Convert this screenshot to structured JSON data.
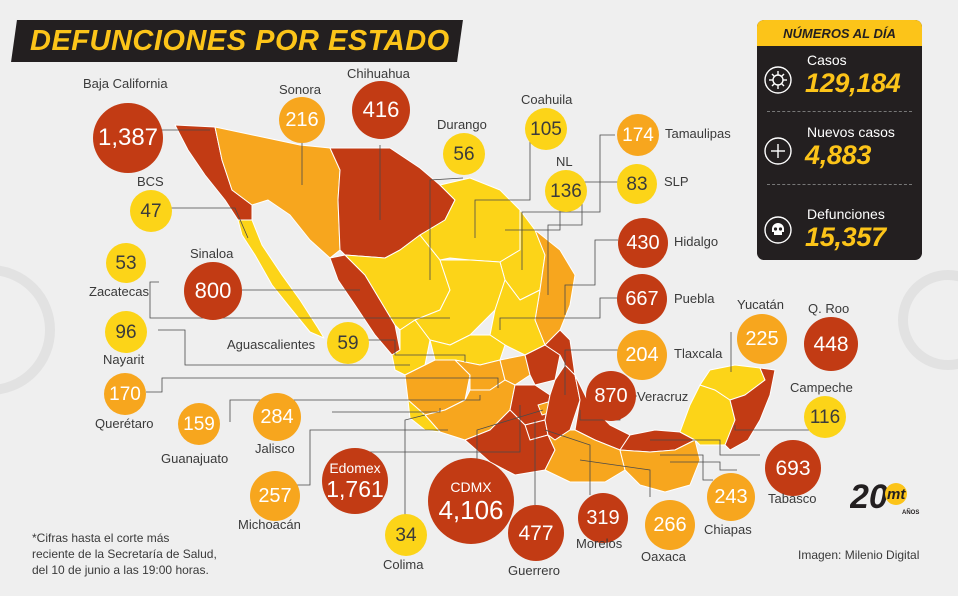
{
  "title": "DEFUNCIONES POR ESTADO",
  "colors": {
    "low": "#fcd418",
    "mid": "#f7a61e",
    "high": "#c23b14",
    "dark": "#231f20"
  },
  "summary": {
    "heading": "NÚMEROS AL DÍA",
    "items": [
      {
        "label": "Casos",
        "value": "129,184",
        "icon": "virus-icon"
      },
      {
        "label": "Nuevos casos",
        "value": "4,883",
        "icon": "plus-icon"
      },
      {
        "label": "Defunciones",
        "value": "15,357",
        "icon": "skull-icon"
      }
    ]
  },
  "states": {
    "baja_california": {
      "name": "Baja California",
      "value": "1,387",
      "level": "high"
    },
    "sonora": {
      "name": "Sonora",
      "value": "216",
      "level": "mid"
    },
    "chihuahua": {
      "name": "Chihuahua",
      "value": "416",
      "level": "high"
    },
    "durango": {
      "name": "Durango",
      "value": "56",
      "level": "low"
    },
    "coahuila": {
      "name": "Coahuila",
      "value": "105",
      "level": "low"
    },
    "tamaulipas": {
      "name": "Tamaulipas",
      "value": "174",
      "level": "mid"
    },
    "nl": {
      "name": "NL",
      "value": "136",
      "level": "low"
    },
    "slp": {
      "name": "SLP",
      "value": "83",
      "level": "low"
    },
    "bcs": {
      "name": "BCS",
      "value": "47",
      "level": "low"
    },
    "hidalgo": {
      "name": "Hidalgo",
      "value": "430",
      "level": "high"
    },
    "zacatecas": {
      "name": "Zacatecas",
      "value": "53",
      "level": "low"
    },
    "sinaloa": {
      "name": "Sinaloa",
      "value": "800",
      "level": "high"
    },
    "puebla": {
      "name": "Puebla",
      "value": "667",
      "level": "high"
    },
    "nayarit": {
      "name": "Nayarit",
      "value": "96",
      "level": "low"
    },
    "aguascalientes": {
      "name": "Aguascalientes",
      "value": "59",
      "level": "low"
    },
    "yucatan": {
      "name": "Yucatán",
      "value": "225",
      "level": "mid"
    },
    "qroo": {
      "name": "Q. Roo",
      "value": "448",
      "level": "high"
    },
    "tlaxcala": {
      "name": "Tlaxcala",
      "value": "204",
      "level": "mid"
    },
    "queretaro": {
      "name": "Querétaro",
      "value": "170",
      "level": "mid"
    },
    "veracruz": {
      "name": "Veracruz",
      "value": "870",
      "level": "high"
    },
    "campeche": {
      "name": "Campeche",
      "value": "116",
      "level": "low"
    },
    "guanajuato": {
      "name": "Guanajuato",
      "value": "159",
      "level": "mid"
    },
    "jalisco": {
      "name": "Jalisco",
      "value": "284",
      "level": "mid"
    },
    "edomex": {
      "name": "Edomex",
      "value": "1,761",
      "level": "high"
    },
    "cdmx": {
      "name": "CDMX",
      "value": "4,106",
      "level": "high"
    },
    "tabasco": {
      "name": "Tabasco",
      "value": "693",
      "level": "high"
    },
    "chiapas": {
      "name": "Chiapas",
      "value": "243",
      "level": "mid"
    },
    "michoacan": {
      "name": "Michoacán",
      "value": "257",
      "level": "mid"
    },
    "morelos": {
      "name": "Morelos",
      "value": "319",
      "level": "high"
    },
    "oaxaca": {
      "name": "Oaxaca",
      "value": "266",
      "level": "mid"
    },
    "colima": {
      "name": "Colima",
      "value": "34",
      "level": "low"
    },
    "guerrero": {
      "name": "Guerrero",
      "value": "477",
      "level": "high"
    }
  },
  "footnote": {
    "line1": "*Cifras hasta el corte más",
    "line2": "reciente de la Secretaría de Salud,",
    "line3": "del 10 de junio a las 19:00 horas."
  },
  "credit": "Imagen: Milenio Digital",
  "logo": {
    "number": "20",
    "brand": "mt",
    "tag": "AÑOS"
  }
}
